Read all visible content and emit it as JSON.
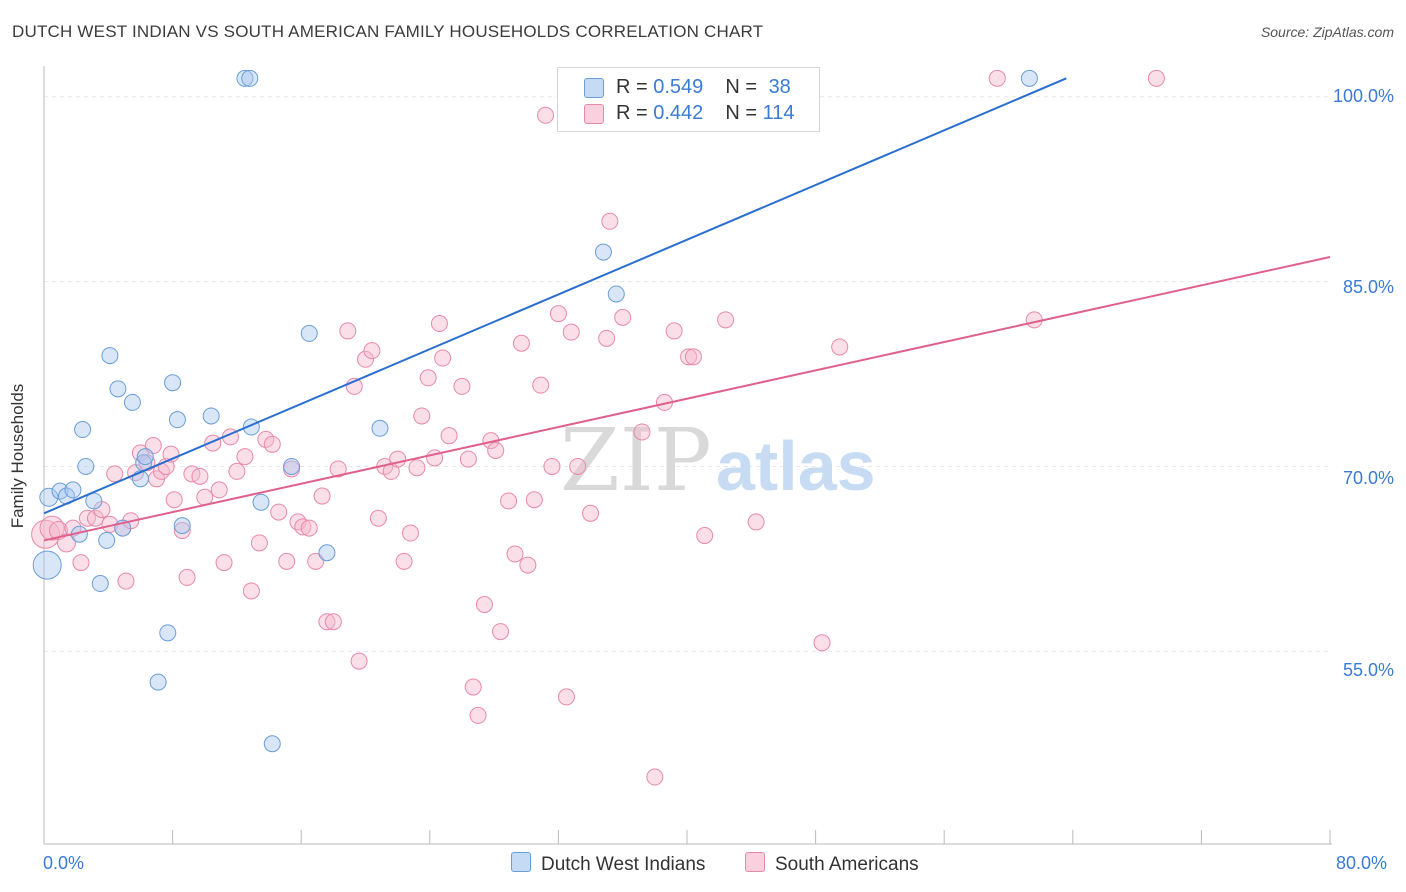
{
  "title": "DUTCH WEST INDIAN VS SOUTH AMERICAN FAMILY HOUSEHOLDS CORRELATION CHART",
  "source": "Source: ZipAtlas.com",
  "watermark": {
    "zip": "ZIP",
    "atlas": "atlas"
  },
  "colors": {
    "blue_fill": "#a8c8f0",
    "blue_stroke": "#6a9ed8",
    "blue_line": "#2a6fd0",
    "pink_fill": "#f5b8cc",
    "pink_stroke": "#e889a8",
    "pink_line": "#e0608c",
    "tick_text": "#3a7bd5",
    "grid": "#e6e6e6"
  },
  "legend_top": [
    {
      "r_label": "R = ",
      "r_value": "0.549",
      "n_label": "N = ",
      "n_value": "38"
    },
    {
      "r_label": "R = ",
      "r_value": "0.442",
      "n_label": "N = ",
      "n_value": "114"
    }
  ],
  "legend_bottom": [
    "Dutch West Indians",
    "South Americans"
  ],
  "chart_data": {
    "type": "scatter",
    "title": "DUTCH WEST INDIAN VS SOUTH AMERICAN FAMILY HOUSEHOLDS CORRELATION CHART",
    "xlabel": "",
    "ylabel": "Family Households",
    "xlim": [
      0,
      80
    ],
    "ylim": [
      40.5,
      102.5
    ],
    "x_tick_labels": [
      "0.0%",
      "80.0%"
    ],
    "y_ticks": [
      55,
      70,
      85,
      100
    ],
    "y_tick_labels": [
      "55.0%",
      "70.0%",
      "85.0%",
      "100.0%"
    ],
    "grid": true,
    "legend_position": "top-center and bottom",
    "series": [
      {
        "name": "Dutch West Indians",
        "R": 0.549,
        "N": 38,
        "trend": {
          "x": [
            0,
            63.6
          ],
          "y": [
            66.2,
            101.5
          ]
        },
        "points": [
          [
            0.2,
            62.0,
            14
          ],
          [
            0.3,
            67.5,
            9
          ],
          [
            1.0,
            68.0,
            8
          ],
          [
            1.4,
            67.6,
            8
          ],
          [
            1.8,
            68.1,
            8
          ],
          [
            2.2,
            64.5,
            8
          ],
          [
            2.4,
            73.0,
            8
          ],
          [
            2.6,
            70.0,
            8
          ],
          [
            3.1,
            67.2,
            8
          ],
          [
            3.5,
            60.5,
            8
          ],
          [
            3.9,
            64.0,
            8
          ],
          [
            4.1,
            79.0,
            8
          ],
          [
            4.6,
            76.3,
            8
          ],
          [
            4.9,
            65.0,
            8
          ],
          [
            5.5,
            75.2,
            8
          ],
          [
            6.0,
            69.0,
            8
          ],
          [
            6.2,
            70.3,
            8
          ],
          [
            6.3,
            70.8,
            8
          ],
          [
            7.1,
            52.5,
            8
          ],
          [
            7.7,
            56.5,
            8
          ],
          [
            8.0,
            76.8,
            8
          ],
          [
            8.3,
            73.8,
            8
          ],
          [
            8.6,
            65.2,
            8
          ],
          [
            10.4,
            74.1,
            8
          ],
          [
            12.5,
            101.5,
            8
          ],
          [
            12.8,
            101.5,
            8
          ],
          [
            12.9,
            73.2,
            8
          ],
          [
            13.5,
            67.1,
            8
          ],
          [
            14.2,
            47.5,
            8
          ],
          [
            15.4,
            70.0,
            8
          ],
          [
            16.5,
            80.8,
            8
          ],
          [
            17.6,
            63.0,
            8
          ],
          [
            20.9,
            73.1,
            8
          ],
          [
            34.8,
            87.4,
            8
          ],
          [
            35.6,
            84.0,
            8
          ],
          [
            61.3,
            101.5,
            8
          ]
        ]
      },
      {
        "name": "South Americans",
        "R": 0.442,
        "N": 114,
        "trend": {
          "x": [
            0,
            80
          ],
          "y": [
            64.0,
            87.0
          ]
        },
        "points": [
          [
            0.1,
            64.5,
            14
          ],
          [
            0.5,
            65.0,
            12
          ],
          [
            0.9,
            64.8,
            9
          ],
          [
            1.4,
            63.8,
            9
          ],
          [
            1.8,
            65.0,
            8
          ],
          [
            2.3,
            62.2,
            8
          ],
          [
            2.7,
            65.8,
            8
          ],
          [
            3.2,
            65.8,
            8
          ],
          [
            3.6,
            66.5,
            8
          ],
          [
            4.1,
            65.3,
            8
          ],
          [
            4.4,
            69.4,
            8
          ],
          [
            4.9,
            65.0,
            8
          ],
          [
            5.1,
            60.7,
            8
          ],
          [
            5.4,
            65.6,
            8
          ],
          [
            5.7,
            69.5,
            8
          ],
          [
            6.0,
            71.1,
            8
          ],
          [
            6.4,
            70.3,
            8
          ],
          [
            6.8,
            71.7,
            8
          ],
          [
            7.0,
            69.0,
            8
          ],
          [
            7.3,
            69.6,
            8
          ],
          [
            7.6,
            70.0,
            8
          ],
          [
            7.9,
            71.0,
            8
          ],
          [
            8.1,
            67.3,
            8
          ],
          [
            8.6,
            64.8,
            8
          ],
          [
            8.9,
            61.0,
            8
          ],
          [
            9.2,
            69.4,
            8
          ],
          [
            9.7,
            69.2,
            8
          ],
          [
            10.0,
            67.5,
            8
          ],
          [
            10.5,
            71.9,
            8
          ],
          [
            10.9,
            68.1,
            8
          ],
          [
            11.2,
            62.2,
            8
          ],
          [
            11.6,
            72.4,
            8
          ],
          [
            12.0,
            69.6,
            8
          ],
          [
            12.5,
            70.8,
            8
          ],
          [
            12.9,
            59.9,
            8
          ],
          [
            13.4,
            63.8,
            8
          ],
          [
            13.8,
            72.2,
            8
          ],
          [
            14.2,
            71.8,
            8
          ],
          [
            14.6,
            66.3,
            8
          ],
          [
            15.1,
            62.3,
            8
          ],
          [
            15.4,
            69.8,
            8
          ],
          [
            15.8,
            65.5,
            8
          ],
          [
            16.1,
            65.1,
            8
          ],
          [
            16.5,
            65.0,
            8
          ],
          [
            16.9,
            62.3,
            8
          ],
          [
            17.3,
            67.6,
            8
          ],
          [
            17.6,
            57.4,
            8
          ],
          [
            18.0,
            57.4,
            8
          ],
          [
            18.3,
            69.8,
            8
          ],
          [
            18.9,
            81.0,
            8
          ],
          [
            19.3,
            76.5,
            8
          ],
          [
            19.6,
            54.2,
            8
          ],
          [
            20.0,
            78.7,
            8
          ],
          [
            20.4,
            79.4,
            8
          ],
          [
            20.8,
            65.8,
            8
          ],
          [
            21.2,
            70.0,
            8
          ],
          [
            21.6,
            69.6,
            8
          ],
          [
            22.0,
            70.6,
            8
          ],
          [
            22.4,
            62.3,
            8
          ],
          [
            22.8,
            64.6,
            8
          ],
          [
            23.2,
            69.9,
            8
          ],
          [
            23.5,
            74.1,
            8
          ],
          [
            23.9,
            77.2,
            8
          ],
          [
            24.3,
            70.7,
            8
          ],
          [
            24.6,
            81.6,
            8
          ],
          [
            24.8,
            78.8,
            8
          ],
          [
            25.2,
            72.5,
            8
          ],
          [
            26.0,
            76.5,
            8
          ],
          [
            26.4,
            70.6,
            8
          ],
          [
            26.7,
            52.1,
            8
          ],
          [
            27.0,
            49.8,
            8
          ],
          [
            27.4,
            58.8,
            8
          ],
          [
            27.8,
            72.1,
            8
          ],
          [
            28.1,
            71.3,
            8
          ],
          [
            28.4,
            56.6,
            8
          ],
          [
            28.9,
            67.2,
            8
          ],
          [
            29.3,
            62.9,
            8
          ],
          [
            29.7,
            80.0,
            8
          ],
          [
            30.1,
            62.0,
            8
          ],
          [
            30.5,
            67.3,
            8
          ],
          [
            30.9,
            76.6,
            8
          ],
          [
            31.2,
            98.5,
            8
          ],
          [
            31.6,
            70.0,
            8
          ],
          [
            32.0,
            82.4,
            8
          ],
          [
            32.5,
            51.3,
            8
          ],
          [
            32.8,
            80.9,
            8
          ],
          [
            33.2,
            70.0,
            8
          ],
          [
            34.0,
            66.2,
            8
          ],
          [
            35.0,
            80.4,
            8
          ],
          [
            35.2,
            89.9,
            8
          ],
          [
            36.0,
            82.1,
            8
          ],
          [
            37.2,
            72.8,
            8
          ],
          [
            38.0,
            44.8,
            8
          ],
          [
            38.6,
            75.2,
            8
          ],
          [
            39.2,
            81.0,
            8
          ],
          [
            40.1,
            78.9,
            8
          ],
          [
            40.4,
            78.9,
            8
          ],
          [
            41.1,
            64.4,
            8
          ],
          [
            42.4,
            81.9,
            8
          ],
          [
            44.3,
            65.5,
            8
          ],
          [
            48.4,
            55.7,
            8
          ],
          [
            49.5,
            79.7,
            8
          ],
          [
            59.3,
            101.5,
            8
          ],
          [
            61.6,
            81.9,
            8
          ],
          [
            69.2,
            101.5,
            8
          ]
        ]
      }
    ]
  }
}
